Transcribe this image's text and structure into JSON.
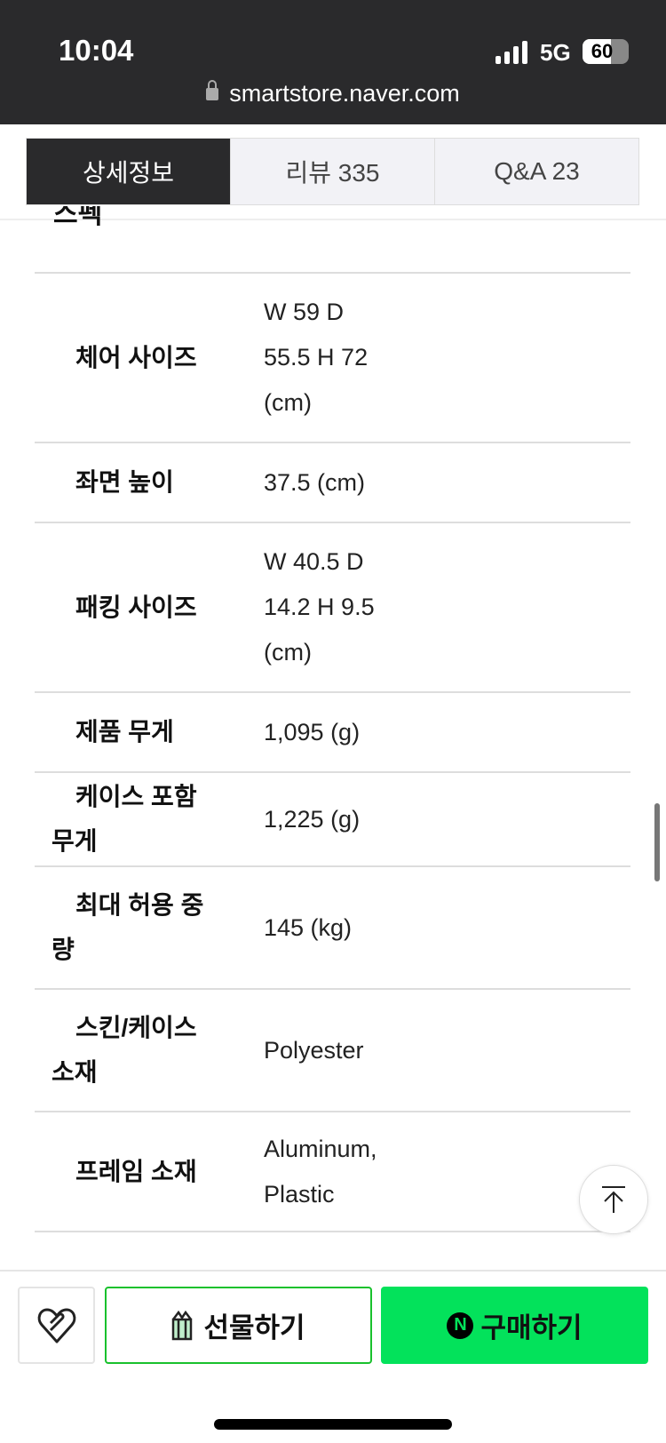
{
  "status_bar": {
    "time": "10:04",
    "network": "5G",
    "battery": "60",
    "battery_level_percent": 60,
    "url": "smartstore.naver.com"
  },
  "tabs": [
    {
      "label": "상세정보",
      "active": true
    },
    {
      "label": "리뷰  335",
      "active": false
    },
    {
      "label": "Q&A  23",
      "active": false
    }
  ],
  "section_partial_title": "스펙",
  "spec_rows": [
    {
      "label": "체어 사이즈",
      "value": [
        "W 59  D",
        "55.5  H 72",
        "(cm)"
      ]
    },
    {
      "label": "좌면 높이",
      "value": [
        "37.5  (cm)"
      ]
    },
    {
      "label": "패킹 사이즈",
      "value": [
        "W 40.5  D",
        "14.2  H 9.5",
        "(cm)"
      ]
    },
    {
      "label": "제품 무게",
      "value": [
        "1,095 (g)"
      ]
    },
    {
      "label": "케이스 포함 무게",
      "value": [
        "1,225 (g)"
      ]
    },
    {
      "label": "최대 허용 중량",
      "value": [
        "145 (kg)"
      ]
    },
    {
      "label": "스킨/케이스 소재",
      "value": [
        "Polyester"
      ]
    },
    {
      "label": "프레임 소재",
      "value": [
        "Aluminum,",
        "Plastic"
      ]
    }
  ],
  "bottom_bar": {
    "gift_label": "선물하기",
    "buy_label": "구매하기",
    "npay_letter": "N"
  },
  "colors": {
    "accent_green": "#03e25b",
    "dark": "#2a2a2c"
  }
}
